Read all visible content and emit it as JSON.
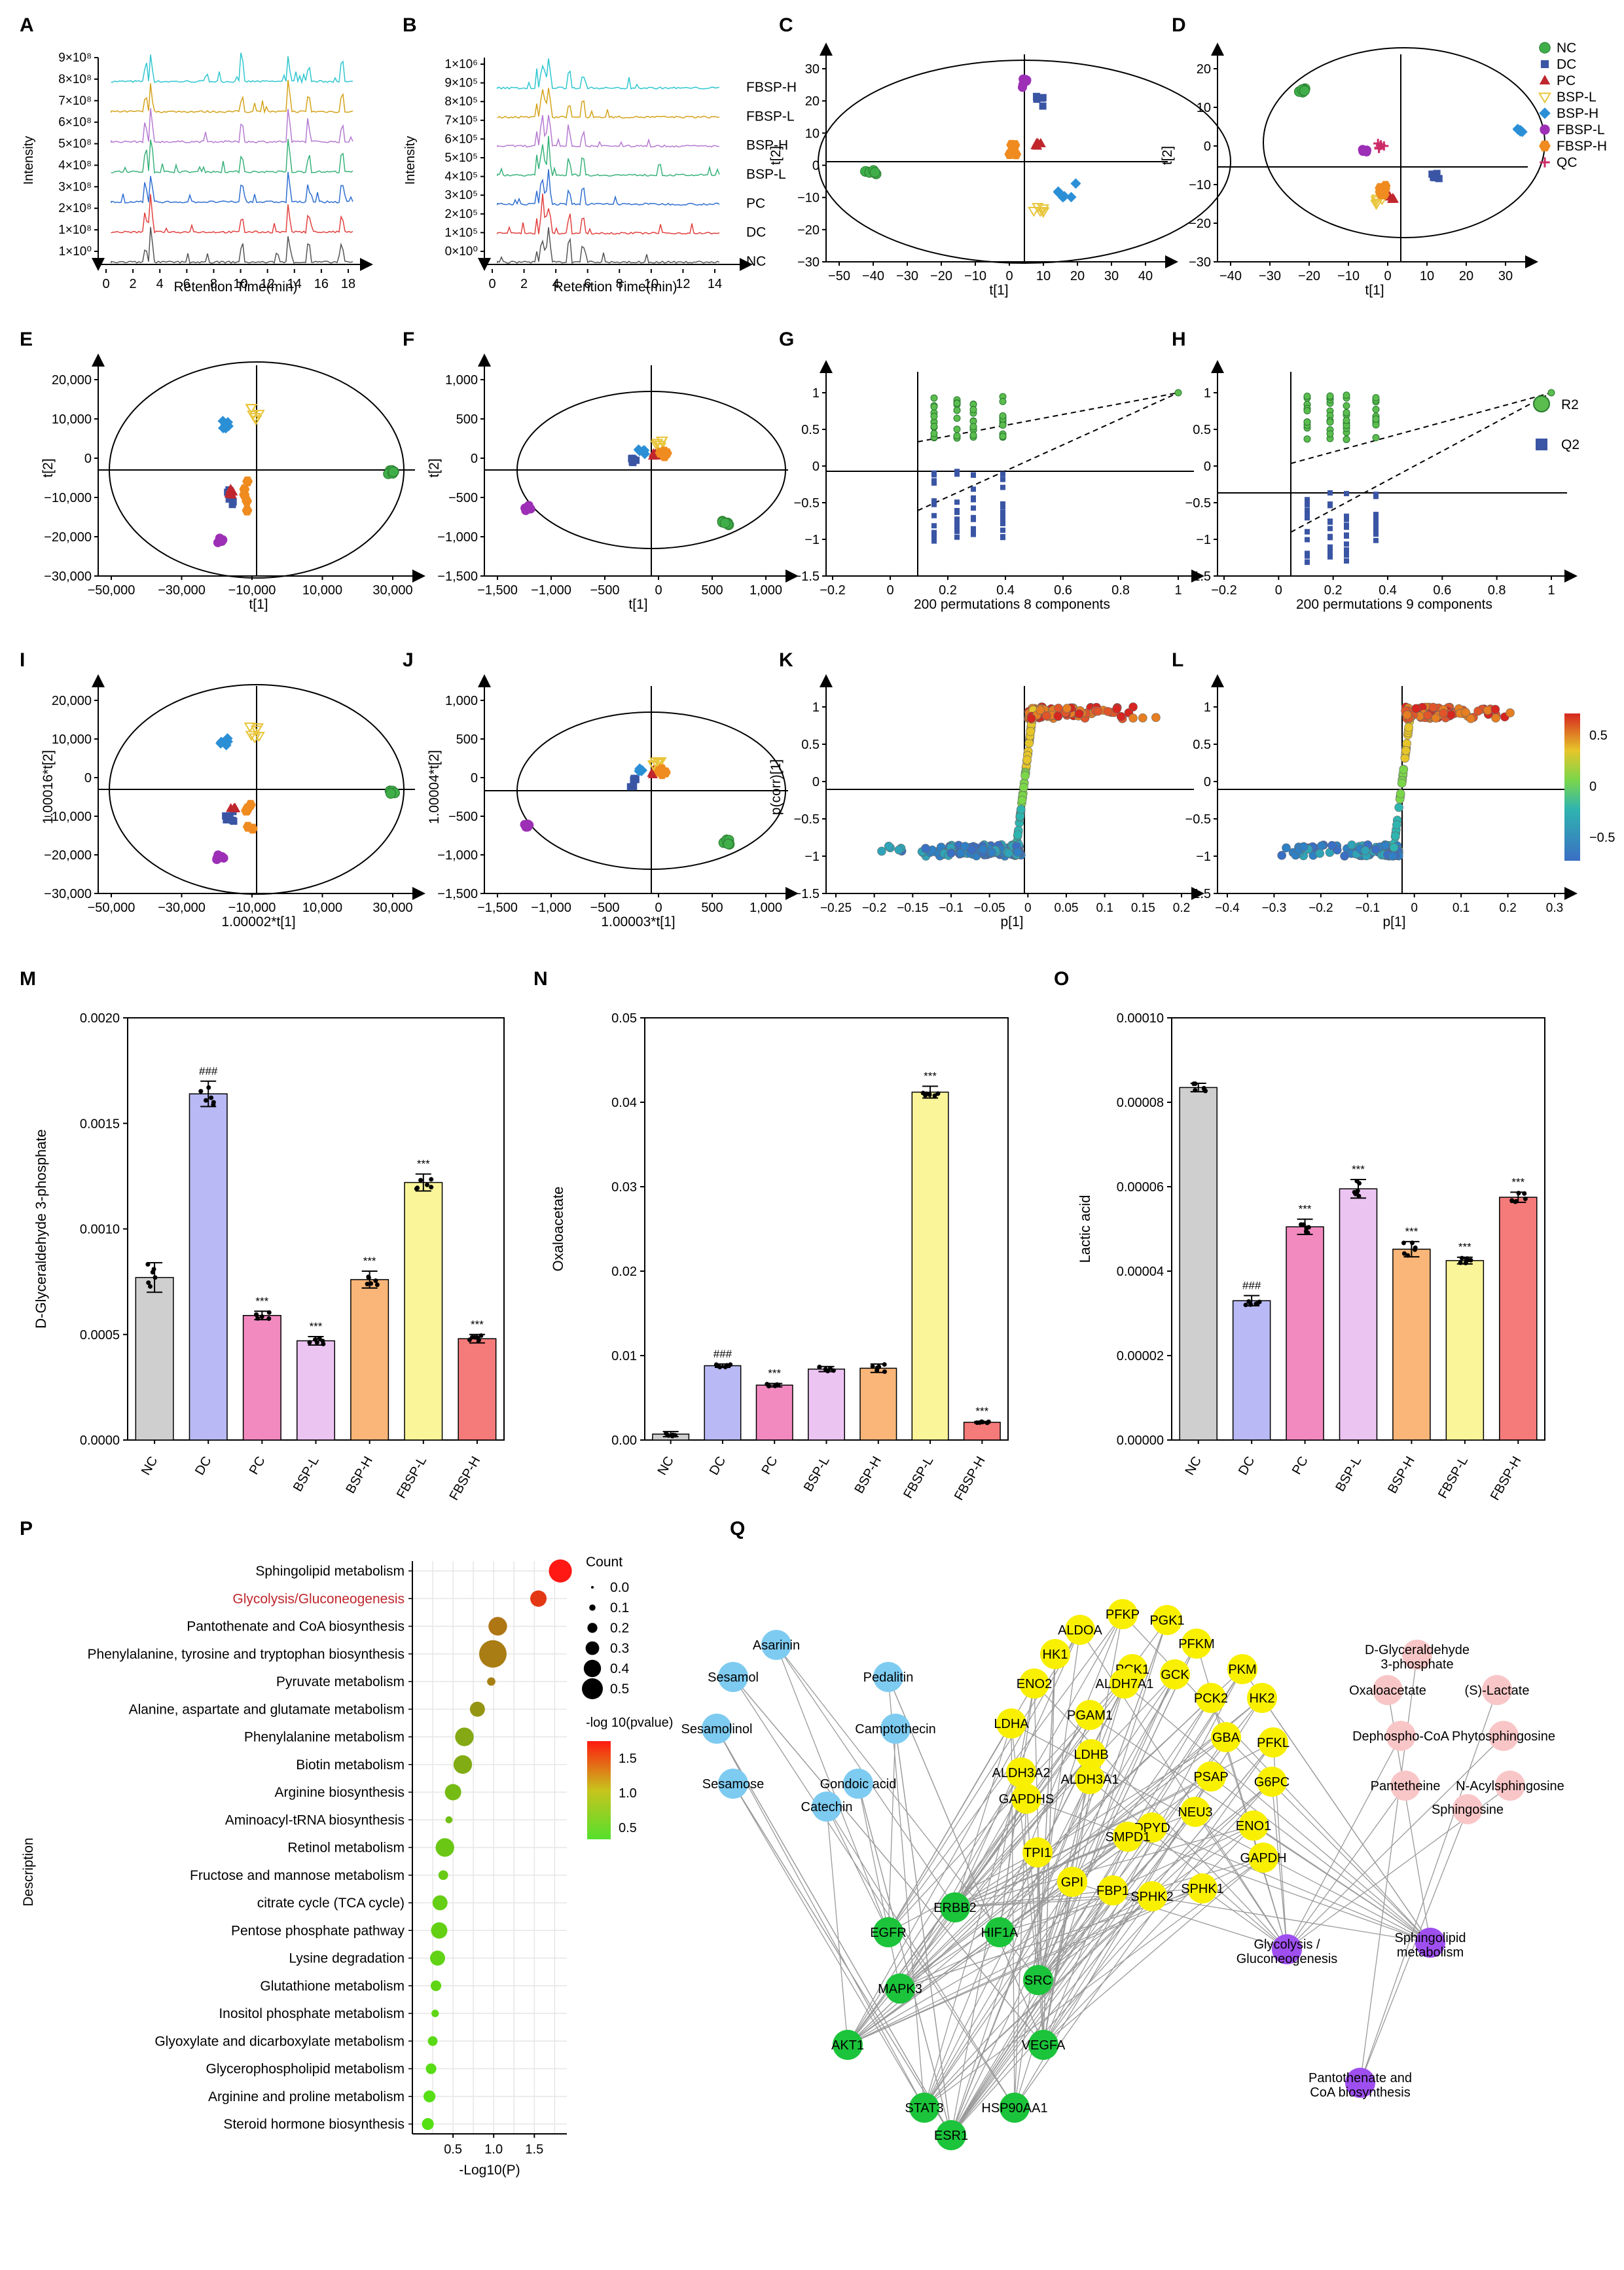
{
  "figure": {
    "panel_labels": [
      "A",
      "B",
      "C",
      "D",
      "E",
      "F",
      "G",
      "H",
      "I",
      "J",
      "K",
      "L",
      "M",
      "N",
      "O",
      "P",
      "Q"
    ]
  },
  "colors": {
    "NC": "#3fae49",
    "DC": "#3a55a4",
    "PC": "#c0272d",
    "BSP-L": "#e8c53a",
    "BSP-H": "#2b8fd6",
    "FBSP-L": "#9c2fb5",
    "FBSP-H": "#ef8b1f",
    "QC": "#cc2a68"
  },
  "panel_A": {
    "ylabel": "Intensity",
    "xlabel": "Retention Time(min)",
    "yticks": [
      "9×10⁸",
      "8×10⁸",
      "7×10⁸",
      "6×10⁸",
      "5×10⁸",
      "4×10⁸",
      "3×10⁸",
      "2×10⁸",
      "1×10⁸",
      "1×10⁰"
    ],
    "xticks": [
      "0",
      "2",
      "4",
      "6",
      "8",
      "10",
      "12",
      "14",
      "16",
      "18"
    ],
    "trace_colors": [
      "#2fc6d0",
      "#d4a21a",
      "#b57ad1",
      "#39b27a",
      "#2f6fd1",
      "#e0413f",
      "#555555"
    ]
  },
  "panel_B": {
    "ylabel": "Intensity",
    "xlabel": "Retention Time(min)",
    "yticks": [
      "1×10⁶",
      "9×10⁵",
      "8×10⁵",
      "7×10⁵",
      "6×10⁵",
      "5×10⁵",
      "4×10⁵",
      "3×10⁵",
      "2×10⁵",
      "1×10⁵",
      "0×10⁰"
    ],
    "xticks": [
      "0",
      "2",
      "4",
      "6",
      "8",
      "10",
      "12",
      "14"
    ],
    "traces": [
      "FBSP-H",
      "FBSP-L",
      "BSP-H",
      "BSP-L",
      "PC",
      "DC",
      "NC"
    ]
  },
  "panel_C": {
    "xlabel": "t[1]",
    "ylabel": "t[2]",
    "xticks": [
      "−50",
      "−40",
      "−30",
      "−20",
      "−10",
      "0",
      "10",
      "20",
      "30",
      "40"
    ],
    "yticks": [
      "30",
      "20",
      "10",
      "0",
      "−10",
      "−20",
      "−30"
    ]
  },
  "panel_D": {
    "xlabel": "t[1]",
    "ylabel": "t[2]",
    "xticks": [
      "−40",
      "−30",
      "−20",
      "−10",
      "0",
      "10",
      "20",
      "30"
    ],
    "yticks": [
      "20",
      "10",
      "0",
      "−10",
      "−20",
      "−30"
    ],
    "legend": [
      "NC",
      "DC",
      "PC",
      "BSP-L",
      "BSP-H",
      "FBSP-L",
      "FBSP-H",
      "QC"
    ]
  },
  "panel_E": {
    "xlabel": "t[1]",
    "ylabel": "t[2]",
    "xticks": [
      "−50,000",
      "−30,000",
      "−10,000",
      "10,000",
      "30,000"
    ],
    "yticks": [
      "20,000",
      "10,000",
      "0",
      "−10,000",
      "−20,000",
      "−30,000"
    ]
  },
  "panel_F": {
    "xlabel": "t[1]",
    "ylabel": "t[2]",
    "xticks": [
      "−1,500",
      "−1,000",
      "−500",
      "0",
      "500",
      "1,000"
    ],
    "yticks": [
      "1,000",
      "500",
      "0",
      "−500",
      "−1,000",
      "−1,500"
    ]
  },
  "panel_G": {
    "xlabel": "200 permutations 8 components",
    "xticks": [
      "−0.2",
      "0",
      "0.2",
      "0.4",
      "0.6",
      "0.8",
      "1"
    ],
    "yticks": [
      "1",
      "0.5",
      "0",
      "−0.5",
      "−1",
      "−1.5"
    ]
  },
  "panel_H": {
    "xlabel": "200 permutations 9 components",
    "xticks": [
      "−0.2",
      "0",
      "0.2",
      "0.4",
      "0.6",
      "0.8",
      "1"
    ],
    "yticks": [
      "1",
      "0.5",
      "0",
      "−0.5",
      "−1",
      "−1.5"
    ],
    "legend": [
      "R2",
      "Q2"
    ]
  },
  "panel_I": {
    "xlabel": "1.00002*t[1]",
    "ylabel": "1.00016*t[2]",
    "xticks": [
      "−50,000",
      "−30,000",
      "−10,000",
      "10,000",
      "30,000"
    ],
    "yticks": [
      "20,000",
      "10,000",
      "0",
      "−10,000",
      "−20,000",
      "−30,000"
    ]
  },
  "panel_J": {
    "xlabel": "1.00003*t[1]",
    "ylabel": "1.00004*t[2]",
    "xticks": [
      "−1,500",
      "−1,000",
      "−500",
      "0",
      "500",
      "1,000"
    ],
    "yticks": [
      "1,000",
      "500",
      "0",
      "−500",
      "−1,000",
      "−1,500"
    ]
  },
  "panel_K": {
    "xlabel": "p[1]",
    "ylabel": "p(corr)[1]",
    "xticks": [
      "−0.25",
      "−0.2",
      "−0.15",
      "−0.1",
      "−0.05",
      "0",
      "0.05",
      "0.1",
      "0.15",
      "0.2"
    ],
    "yticks": [
      "1",
      "0.5",
      "0",
      "−0.5",
      "−1",
      "−1.5"
    ]
  },
  "panel_L": {
    "xlabel": "p[1]",
    "xticks": [
      "−0.4",
      "−0.3",
      "−0.2",
      "−0.1",
      "0",
      "0.1",
      "0.2",
      "0.3"
    ],
    "yticks": [
      "1",
      "0.5",
      "0",
      "−0.5",
      "−1",
      "−1.5"
    ],
    "colorbar_ticks": [
      "0.5",
      "0",
      "−0.5"
    ]
  },
  "chart_data": [
    {
      "panel": "M",
      "type": "bar",
      "ylabel": "D-Glyceraldehyde 3-phosphate",
      "categories": [
        "NC",
        "DC",
        "PC",
        "BSP-L",
        "BSP-H",
        "FBSP-L",
        "FBSP-H"
      ],
      "values": [
        0.00077,
        0.00164,
        0.00059,
        0.00047,
        0.00076,
        0.00122,
        0.00048
      ],
      "errors": [
        7e-05,
        6e-05,
        2e-05,
        2e-05,
        4e-05,
        4e-05,
        2e-05
      ],
      "significance": [
        "",
        "###",
        "***",
        "***",
        "***",
        "***",
        "***"
      ],
      "yticks": [
        "0.0020",
        "0.0015",
        "0.0010",
        "0.0005",
        "0.0000"
      ],
      "ylim": [
        0,
        0.002
      ]
    },
    {
      "panel": "N",
      "type": "bar",
      "ylabel": "Oxaloacetate",
      "categories": [
        "NC",
        "DC",
        "PC",
        "BSP-L",
        "BSP-H",
        "FBSP-L",
        "FBSP-H"
      ],
      "values": [
        0.0007,
        0.0088,
        0.0065,
        0.0084,
        0.0085,
        0.0412,
        0.0021
      ],
      "errors": [
        0.0003,
        0.0002,
        0.0002,
        0.0003,
        0.0005,
        0.0007,
        0.0001
      ],
      "significance": [
        "",
        "###",
        "***",
        "",
        "",
        "***",
        "***"
      ],
      "yticks": [
        "0.05",
        "0.04",
        "0.03",
        "0.02",
        "0.01",
        "0.00"
      ],
      "ylim": [
        0,
        0.05
      ]
    },
    {
      "panel": "O",
      "type": "bar",
      "ylabel": "Lactic acid",
      "categories": [
        "NC",
        "DC",
        "PC",
        "BSP-L",
        "BSP-H",
        "FBSP-L",
        "FBSP-H"
      ],
      "values": [
        8.35e-05,
        3.3e-05,
        5.05e-05,
        5.95e-05,
        4.52e-05,
        4.25e-05,
        5.75e-05
      ],
      "errors": [
        1e-06,
        1.2e-06,
        1.8e-06,
        2.2e-06,
        1.8e-06,
        8e-07,
        1.2e-06
      ],
      "significance": [
        "",
        "###",
        "***",
        "***",
        "***",
        "***",
        "***"
      ],
      "yticks": [
        "0.00010",
        "0.00008",
        "0.00006",
        "0.00004",
        "0.00002",
        "0.00000"
      ],
      "ylim": [
        0,
        0.0001
      ]
    },
    {
      "panel": "P",
      "type": "scatter",
      "ylabel": "Description",
      "xlabel": "-Log10(P)",
      "xticks": [
        "0.5",
        "1.0",
        "1.5"
      ],
      "xlim": [
        0,
        1.9
      ],
      "size_legend_title": "Count",
      "size_legend": [
        "0.0",
        "0.1",
        "0.2",
        "0.3",
        "0.4",
        "0.5"
      ],
      "color_legend_title": "-log 10(pvalue)",
      "color_legend": [
        "1.5",
        "1.0",
        "0.5"
      ],
      "categories": [
        "Sphingolipid metabolism",
        "Glycolysis/Gluconeogenesis",
        "Pantothenate and CoA biosynthesis",
        "Phenylalanine, tyrosine and tryptophan biosynthesis",
        "Pyruvate metabolism",
        "Alanine, aspartate and glutamate metabolism",
        "Phenylalanine metabolism",
        "Biotin metabolism",
        "Arginine biosynthesis",
        "Aminoacyl-tRNA biosynthesis",
        "Retinol metabolism",
        "Fructose and mannose metabolism",
        "citrate cycle (TCA cycle)",
        "Pentose phosphate pathway",
        "Lysine degradation",
        "Glutathione metabolism",
        "Inositol phosphate metabolism",
        "Glyoxylate and dicarboxylate metabolism",
        "Glycerophospholipid metabolism",
        "Arginine and proline metabolism",
        "Steroid hormone biosynthesis"
      ],
      "x": [
        1.82,
        1.55,
        1.05,
        0.99,
        0.97,
        0.8,
        0.64,
        0.62,
        0.5,
        0.45,
        0.4,
        0.38,
        0.34,
        0.33,
        0.31,
        0.29,
        0.28,
        0.25,
        0.23,
        0.21,
        0.19
      ],
      "count": [
        0.4,
        0.25,
        0.3,
        0.5,
        0.07,
        0.22,
        0.3,
        0.3,
        0.25,
        0.04,
        0.3,
        0.1,
        0.22,
        0.25,
        0.22,
        0.12,
        0.05,
        0.1,
        0.12,
        0.15,
        0.15
      ],
      "highlight": "Glycolysis/Gluconeogenesis"
    }
  ],
  "network_Q": {
    "blue": [
      [
        "Asarinin",
        1186,
        2513
      ],
      [
        "Sesamol",
        1120,
        2562
      ],
      [
        "Pedalitin",
        1357,
        2562
      ],
      [
        "Sesamolinol",
        1095,
        2641
      ],
      [
        "Camptothecin",
        1368,
        2641
      ],
      [
        "Sesamose",
        1120,
        2725
      ],
      [
        "Gondoic acid",
        1311,
        2725
      ],
      [
        "Catechin",
        1263,
        2760
      ]
    ],
    "yellow": [
      [
        "PFKP",
        1715,
        2466
      ],
      [
        "PGK1",
        1783,
        2475
      ],
      [
        "ALDOA",
        1650,
        2490
      ],
      [
        "PFKM",
        1828,
        2511
      ],
      [
        "HK1",
        1612,
        2527
      ],
      [
        "PCK1",
        1730,
        2550
      ],
      [
        "GCK",
        1795,
        2558
      ],
      [
        "PKM",
        1898,
        2550
      ],
      [
        "ALDH7A1",
        1718,
        2572
      ],
      [
        "ENO2",
        1580,
        2572
      ],
      [
        "PCK2",
        1850,
        2594
      ],
      [
        "HK2",
        1928,
        2594
      ],
      [
        "PGAM1",
        1665,
        2620
      ],
      [
        "LDHA",
        1545,
        2633
      ],
      [
        "GBA",
        1873,
        2654
      ],
      [
        "PFKL",
        1945,
        2662
      ],
      [
        "LDHB",
        1667,
        2680
      ],
      [
        "ALDH3A2",
        1560,
        2708
      ],
      [
        "ALDH3A1",
        1665,
        2718
      ],
      [
        "PSAP",
        1850,
        2714
      ],
      [
        "G6PC",
        1943,
        2722
      ],
      [
        "GAPDHS",
        1568,
        2748
      ],
      [
        "NEU3",
        1826,
        2768
      ],
      [
        "DPYD",
        1760,
        2792
      ],
      [
        "SMPD1",
        1723,
        2806
      ],
      [
        "ENO1",
        1915,
        2789
      ],
      [
        "TPI1",
        1585,
        2830
      ],
      [
        "GAPDH",
        1930,
        2838
      ],
      [
        "GPI",
        1638,
        2875
      ],
      [
        "SPHK1",
        1837,
        2885
      ],
      [
        "FBP1",
        1700,
        2888
      ],
      [
        "SPHK2",
        1760,
        2897
      ]
    ],
    "green": [
      [
        "ERBB2",
        1459,
        2914
      ],
      [
        "EGFR",
        1357,
        2952
      ],
      [
        "HIF1A",
        1527,
        2952
      ],
      [
        "MAPK3",
        1375,
        3038
      ],
      [
        "SRC",
        1586,
        3025
      ],
      [
        "AKT1",
        1295,
        3124
      ],
      [
        "VEGFA",
        1594,
        3124
      ],
      [
        "STAT3",
        1412,
        3220
      ],
      [
        "ESR1",
        1453,
        3262
      ],
      [
        "HSP90AA1",
        1550,
        3220
      ]
    ],
    "pink": [
      [
        "D-Glyceraldehyde 3-phosphate",
        2165,
        2528
      ],
      [
        "Oxaloacetate",
        2120,
        2582
      ],
      [
        "(S)-Lactate",
        2287,
        2582
      ],
      [
        "Dephospho-CoA",
        2140,
        2652
      ],
      [
        "Phytosphingosine",
        2297,
        2652
      ],
      [
        "Pantetheine",
        2147,
        2728
      ],
      [
        "N-Acylsphingosine",
        2307,
        2728
      ],
      [
        "Sphingosine",
        2242,
        2764
      ]
    ],
    "purple": [
      [
        "Glycolysis / Gluconeogenesis",
        1966,
        2978
      ],
      [
        "Sphingolipid metabolism",
        2185,
        2968
      ],
      [
        "Pantothenate and CoA biosynthesis",
        2078,
        3182
      ]
    ]
  }
}
